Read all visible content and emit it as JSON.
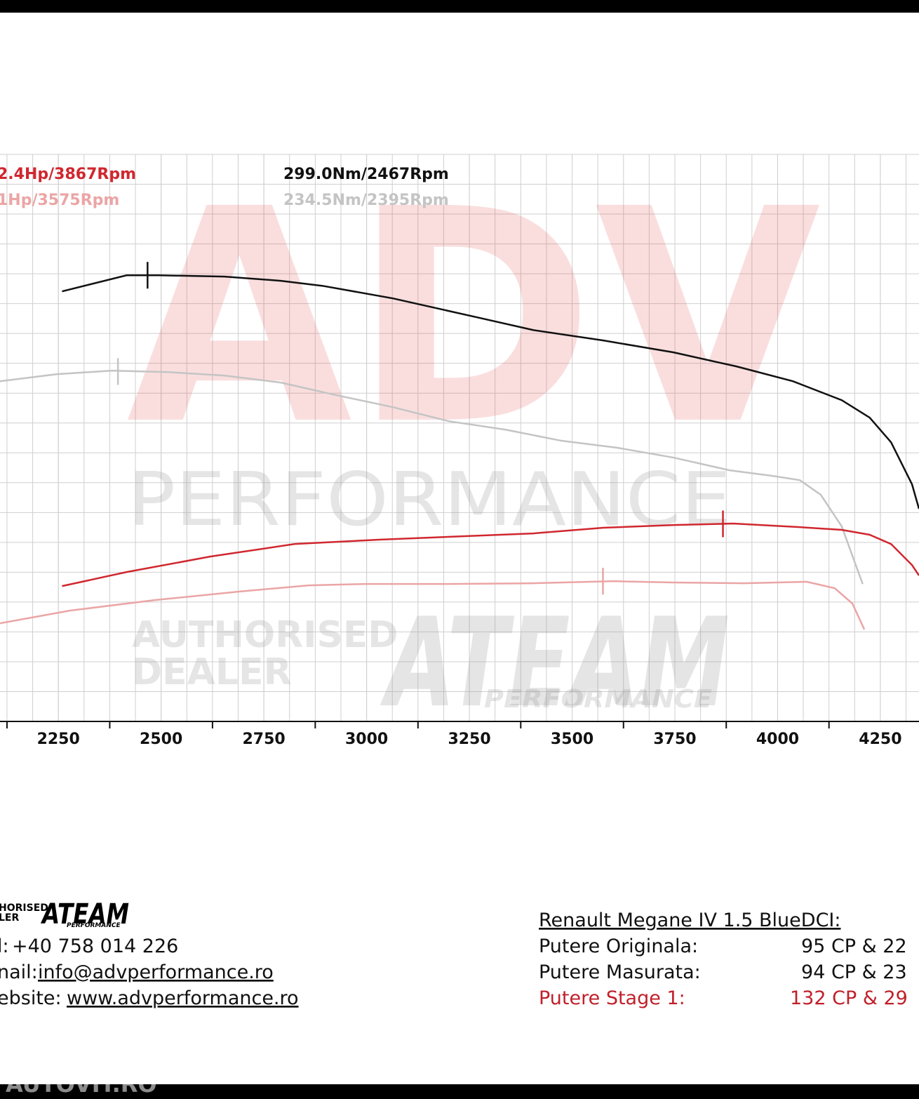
{
  "chart_data": {
    "type": "line",
    "xlim": [
      2108,
      4344
    ],
    "xticks": [
      2250,
      2500,
      2750,
      3000,
      3250,
      3500,
      3750,
      4000,
      4250
    ],
    "ylim": [
      0,
      380
    ],
    "yticks": [
      0,
      20,
      40,
      60,
      80,
      100,
      120,
      140,
      160,
      180,
      200,
      220,
      240,
      260,
      280,
      300,
      320,
      340,
      360,
      380
    ],
    "grid": true,
    "annotations": [
      {
        "text": "2.4Hp/3867Rpm",
        "color": "#d0272f"
      },
      {
        "text": "1Hp/3575Rpm",
        "color": "#eba5a5"
      },
      {
        "text": "299.0Nm/2467Rpm",
        "color": "#111111"
      },
      {
        "text": "234.5Nm/2395Rpm",
        "color": "#c4c4c4"
      }
    ],
    "series": [
      {
        "color": "#111111",
        "peak": {
          "x": 2467,
          "value": 299.0
        },
        "x": [
          2259,
          2416,
          2494,
          2654,
          2791,
          2893,
          3064,
          3269,
          3405,
          3576,
          3747,
          3900,
          4037,
          4156,
          4224,
          4276,
          4327,
          4344
        ],
        "values": [
          288.2,
          299.0,
          299.0,
          298.1,
          295.3,
          291.9,
          283.5,
          270.8,
          262.3,
          255.3,
          247.3,
          237.9,
          228.0,
          215.3,
          203.6,
          187.1,
          158.9,
          142.5
        ]
      },
      {
        "color": "#c4c4c4",
        "peak": {
          "x": 2395,
          "value": 234.5
        },
        "x": [
          2108,
          2245,
          2381,
          2518,
          2654,
          2791,
          2927,
          3064,
          3200,
          3337,
          3474,
          3610,
          3747,
          3883,
          3986,
          4054,
          4105,
          4156,
          4207
        ],
        "values": [
          228.0,
          232.7,
          235.1,
          234.1,
          231.8,
          227.1,
          218.6,
          210.6,
          201.2,
          195.6,
          188.1,
          183.4,
          176.8,
          168.3,
          164.6,
          161.7,
          151.9,
          130.7,
          92.1
        ]
      },
      {
        "color": "#d0272f",
        "peak": {
          "x": 3867,
          "value": 132.4
        },
        "x": [
          2259,
          2416,
          2620,
          2825,
          3030,
          3235,
          3405,
          3576,
          3747,
          3892,
          4054,
          4156,
          4224,
          4276,
          4327,
          4344
        ],
        "values": [
          90.7,
          100.1,
          110.5,
          118.9,
          121.8,
          124.1,
          126.0,
          129.8,
          131.6,
          132.6,
          130.2,
          128.4,
          125.1,
          118.9,
          104.8,
          97.8
        ]
      },
      {
        "color": "#eba5a5",
        "peak": {
          "x": 3575,
          "value": 94.0
        },
        "x": [
          2108,
          2279,
          2484,
          2689,
          2859,
          2996,
          3200,
          3405,
          3601,
          3747,
          3917,
          4071,
          4139,
          4182,
          4211
        ],
        "values": [
          65.8,
          74.3,
          81.3,
          87.0,
          91.2,
          92.1,
          92.1,
          92.6,
          94.0,
          93.1,
          92.6,
          93.6,
          89.3,
          79.0,
          61.6
        ]
      }
    ]
  },
  "watermark": {
    "brand": "ADV",
    "sub": "PERFORMANCE",
    "dealer": [
      "AUTHORISED",
      "DEALER"
    ],
    "team": "ATEAM",
    "team_sub": "PERFORMANCE"
  },
  "footer": {
    "logo": {
      "dealer": [
        "HORISED",
        "LER"
      ],
      "team": "ATEAM",
      "team_sub": "PERFORMANCE"
    },
    "contacts": [
      {
        "label": "l:",
        "value": "+40 758 014 226"
      },
      {
        "label": "nail:",
        "value": "info@advperformance.ro"
      },
      {
        "label": "ebsite:",
        "value": "www.advperformance.ro"
      }
    ],
    "car": "Renault Megane IV 1.5 BlueDCI:",
    "rows": [
      {
        "label": "Putere Originala:",
        "value": "95 CP & 22"
      },
      {
        "label": "Putere Masurata:",
        "value": "94 CP & 23"
      },
      {
        "label": "Putere Stage 1:",
        "value": "132 CP & 29"
      }
    ],
    "site_mark": "AUTOVIT.RO"
  }
}
